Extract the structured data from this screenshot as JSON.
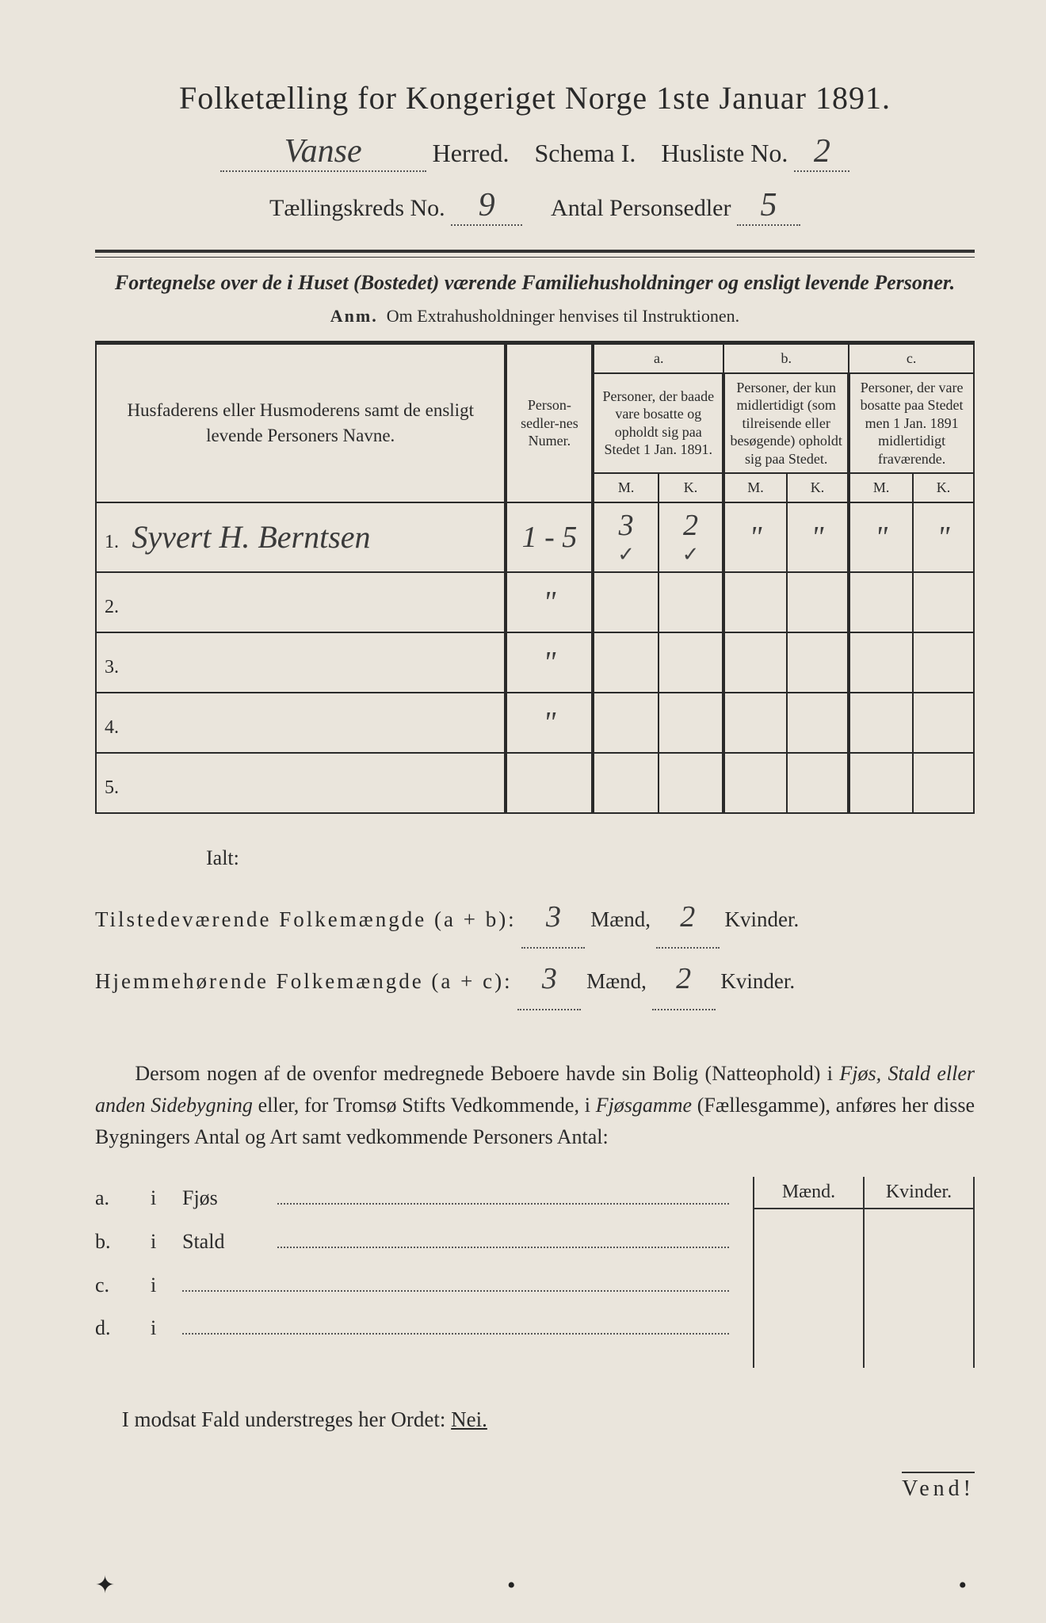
{
  "title": "Folketælling for Kongeriget Norge 1ste Januar 1891.",
  "header": {
    "herred_value": "Vanse",
    "herred_label": "Herred.",
    "schema_label": "Schema I.",
    "husliste_label": "Husliste No.",
    "husliste_value": "2",
    "kreds_label": "Tællingskreds No.",
    "kreds_value": "9",
    "antal_label": "Antal Personsedler",
    "antal_value": "5"
  },
  "subtitle": "Fortegnelse over de i Huset (Bostedet) værende Familiehusholdninger og ensligt levende Personer.",
  "anm_label": "Anm.",
  "anm_text": "Om Extrahusholdninger henvises til Instruktionen.",
  "table": {
    "col_names": "Husfaderens eller Husmoderens samt de ensligt levende Personers Navne.",
    "col_sedler": "Person-sedler-nes Numer.",
    "col_a_head": "a.",
    "col_a": "Personer, der baade vare bosatte og opholdt sig paa Stedet 1 Jan. 1891.",
    "col_b_head": "b.",
    "col_b": "Personer, der kun midlertidigt (som tilreisende eller besøgende) opholdt sig paa Stedet.",
    "col_c_head": "c.",
    "col_c": "Personer, der vare bosatte paa Stedet men 1 Jan. 1891 midlertidigt fraværende.",
    "m": "M.",
    "k": "K.",
    "rows": [
      {
        "n": "1.",
        "name": "Syvert H. Berntsen",
        "sedler": "1 - 5",
        "am": "3",
        "ak": "2",
        "bm": "\"",
        "bk": "\"",
        "cm": "\"",
        "ck": "\"",
        "check": true
      },
      {
        "n": "2.",
        "name": "",
        "sedler": "\"",
        "am": "",
        "ak": "",
        "bm": "",
        "bk": "",
        "cm": "",
        "ck": ""
      },
      {
        "n": "3.",
        "name": "",
        "sedler": "\"",
        "am": "",
        "ak": "",
        "bm": "",
        "bk": "",
        "cm": "",
        "ck": ""
      },
      {
        "n": "4.",
        "name": "",
        "sedler": "\"",
        "am": "",
        "ak": "",
        "bm": "",
        "bk": "",
        "cm": "",
        "ck": ""
      },
      {
        "n": "5.",
        "name": "",
        "sedler": "",
        "am": "",
        "ak": "",
        "bm": "",
        "bk": "",
        "cm": "",
        "ck": ""
      }
    ]
  },
  "totals": {
    "ialt": "Ialt:",
    "line1_label": "Tilstedeværende Folkemængde (a + b):",
    "line2_label": "Hjemmehørende Folkemængde (a + c):",
    "maend": "Mænd,",
    "kvinder": "Kvinder.",
    "l1_m": "3",
    "l1_k": "2",
    "l2_m": "3",
    "l2_k": "2"
  },
  "para": "Dersom nogen af de ovenfor medregnede Beboere havde sin Bolig (Natteophold) i Fjøs, Stald eller anden Sidebygning eller, for Tromsø Stifts Vedkommende, i Fjøsgamme (Fællesgamme), anføres her disse Bygningers Antal og Art samt vedkommende Personers Antal:",
  "abcd": {
    "a": "Fjøs",
    "b": "Stald",
    "c": "",
    "d": "",
    "maend": "Mænd.",
    "kvinder": "Kvinder."
  },
  "nei": "I modsat Fald understreges her Ordet: ",
  "nei_word": "Nei.",
  "vend": "Vend!",
  "colors": {
    "paper": "#eae5dc",
    "ink": "#2a2a2a",
    "bg": "#1a1a1a"
  }
}
